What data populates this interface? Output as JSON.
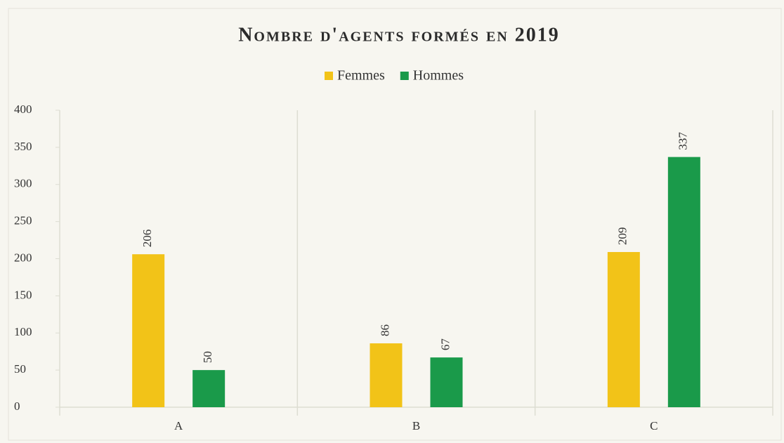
{
  "chart_data": {
    "type": "bar",
    "title": "Nombre d'agents formés en 2019",
    "categories": [
      "A",
      "B",
      "C"
    ],
    "series": [
      {
        "name": "Femmes",
        "color": "#f2c318",
        "values": [
          206,
          86,
          209
        ]
      },
      {
        "name": "Hommes",
        "color": "#1a9a4a",
        "values": [
          50,
          67,
          337
        ]
      }
    ],
    "ylim": [
      0,
      400
    ],
    "yticks": [
      0,
      50,
      100,
      150,
      200,
      250,
      300,
      350,
      400
    ],
    "legend": "top"
  }
}
